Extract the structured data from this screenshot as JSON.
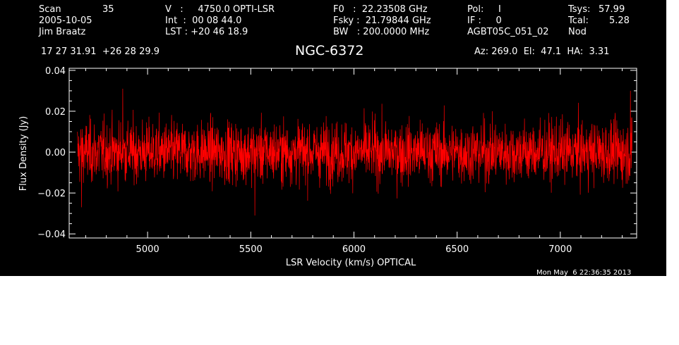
{
  "header": {
    "scan_label": "Scan",
    "scan_number": "35",
    "date": "2005-10-05",
    "observer": "Jim Braatz",
    "velocity": "V   :     4750.0 OPTI-LSR",
    "int_time": "Int  :  00 08 44.0",
    "lst": "LST : +20 46 18.9",
    "f0": "F0   :  22.23508 GHz",
    "fsky": "Fsky :  21.79844 GHz",
    "bw": "BW   : 200.0000 MHz",
    "pol": "Pol:     I",
    "if_line": "IF :     0",
    "project": "AGBT05C_051_02",
    "tsys_label": "Tsys:",
    "tsys_value": "57.99",
    "tcal_label": "Tcal:",
    "tcal_value": "5.28",
    "mode": "Nod",
    "coords": "17 27 31.91  +26 28 29.9",
    "source": "NGC-6372",
    "az_el_ha": "Az: 269.0  El:  47.1  HA:  3.31",
    "timestamp": "Mon May  6 22:36:35 2013"
  },
  "chart_data": {
    "type": "line",
    "title": "NGC-6372",
    "xlabel": "LSR Velocity (km/s) OPTICAL",
    "ylabel": "Flux Density (Jy)",
    "xlim": [
      4620,
      7370
    ],
    "ylim": [
      -0.042,
      0.041
    ],
    "x_ticks": [
      5000,
      5500,
      6000,
      6500,
      7000
    ],
    "y_ticks": [
      -0.04,
      -0.02,
      0.0,
      0.02,
      0.04
    ],
    "y_tick_labels": [
      "−0.04",
      "−0.02",
      "0.00",
      "0.02",
      "0.04"
    ],
    "grid": false,
    "colors": {
      "background": "#000000",
      "axes": "#ffffff",
      "series": "#ff0000"
    },
    "series": [
      {
        "x_start": 4660,
        "x_end": 7350,
        "noise_rms": 0.0075,
        "mean": 0.0,
        "peak_values": [
          {
            "x": 4880,
            "y": 0.031
          },
          {
            "x": 5520,
            "y": -0.031
          },
          {
            "x": 4680,
            "y": -0.027
          },
          {
            "x": 7340,
            "y": 0.03
          }
        ]
      }
    ]
  }
}
